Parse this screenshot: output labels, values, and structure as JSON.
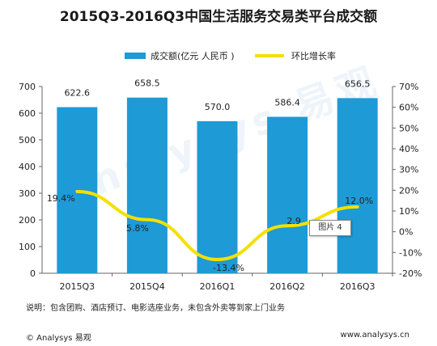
{
  "watermark": "Analysys 易观",
  "tooltip": "图片 4",
  "note": "说明：包含团购、酒店预订、电影选座业务，未包含外卖等到家上门业务",
  "copyright": "© Analysys 易观",
  "site": "www.analysys.cn",
  "colors": {
    "bar": "#1e9ad6",
    "line": "#f3e000",
    "axis": "#666666"
  },
  "chart_data": {
    "type": "bar",
    "title": "2015Q3-2016Q3中国生活服务交易类平台成交额",
    "categories": [
      "2015Q3",
      "2015Q4",
      "2016Q1",
      "2016Q2",
      "2016Q3"
    ],
    "series": [
      {
        "name": "成交额(亿元 人民币 )",
        "type": "bar",
        "axis": "left",
        "values": [
          622.6,
          658.5,
          570.0,
          586.4,
          656.5
        ],
        "labels": [
          "622.6",
          "658.5",
          "570.0",
          "586.4",
          "656.5"
        ]
      },
      {
        "name": "环比增长率",
        "type": "line",
        "axis": "right",
        "values": [
          19.4,
          5.8,
          -13.4,
          2.9,
          12.0
        ],
        "labels": [
          "19.4%",
          "5.8%",
          "-13.4%",
          "2.9",
          "12.0%"
        ]
      }
    ],
    "ylim": [
      0,
      700
    ],
    "yticks": [
      "0",
      "100",
      "200",
      "300",
      "400",
      "500",
      "600",
      "700"
    ],
    "y2lim": [
      -20,
      70
    ],
    "y2ticks": [
      "-20%",
      "-10%",
      "0%",
      "10%",
      "20%",
      "30%",
      "40%",
      "50%",
      "60%",
      "70%"
    ],
    "legend": "top",
    "grid": false
  }
}
